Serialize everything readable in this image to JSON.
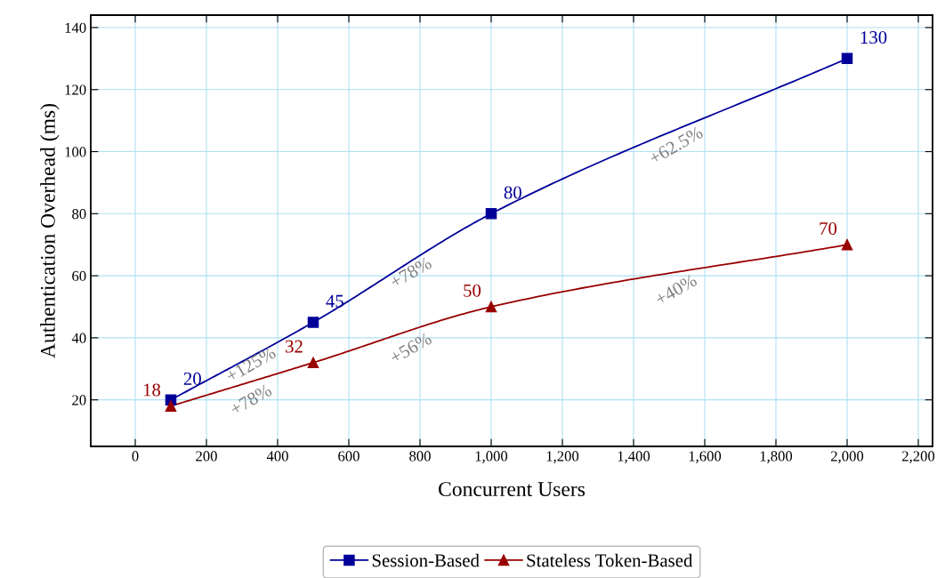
{
  "chart_data": {
    "type": "line",
    "xlabel": "Concurrent Users",
    "ylabel": "Authentication Overhead (ms)",
    "xlim": [
      -125,
      2240
    ],
    "ylim": [
      5,
      144
    ],
    "xticks": [
      {
        "value": 0,
        "label": "0"
      },
      {
        "value": 200,
        "label": "200"
      },
      {
        "value": 400,
        "label": "400"
      },
      {
        "value": 600,
        "label": "600"
      },
      {
        "value": 800,
        "label": "800"
      },
      {
        "value": 1000,
        "label": "1,000"
      },
      {
        "value": 1200,
        "label": "1,200"
      },
      {
        "value": 1400,
        "label": "1,400"
      },
      {
        "value": 1600,
        "label": "1,600"
      },
      {
        "value": 1800,
        "label": "1,800"
      },
      {
        "value": 2000,
        "label": "2,000"
      },
      {
        "value": 2200,
        "label": "2,200"
      }
    ],
    "yticks": [
      20,
      40,
      60,
      80,
      100,
      120,
      140
    ],
    "x": [
      100,
      500,
      1000,
      2000
    ],
    "series": [
      {
        "name": "Session-Based",
        "color": "#000099",
        "marker": "square",
        "values": [
          20,
          45,
          80,
          130
        ]
      },
      {
        "name": "Stateless Token-Based",
        "color": "#990000",
        "marker": "triangle",
        "values": [
          18,
          32,
          50,
          70
        ]
      }
    ],
    "data_labels": true,
    "grid": true,
    "legend": "bottom",
    "line_style": "solid",
    "annotations": [
      "+125%",
      "+78%",
      "+78%",
      "+56%",
      "+62.5%",
      "+40%"
    ]
  }
}
